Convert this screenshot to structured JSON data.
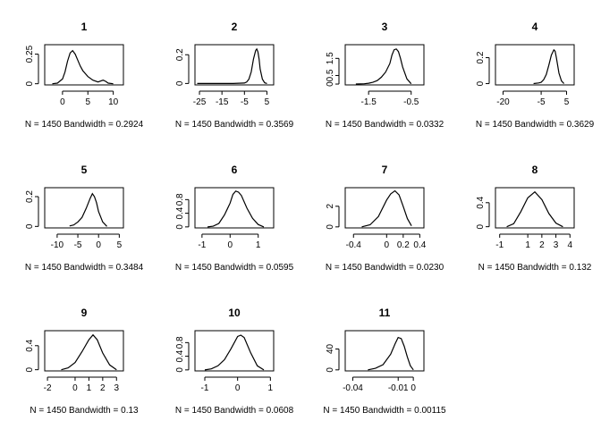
{
  "chart_data": [
    {
      "type": "line",
      "title": "1",
      "subtitle": "N = 1450   Bandwidth = 0.2924",
      "xticks": [
        0,
        5,
        10
      ],
      "xlim": [
        -3.5,
        12
      ],
      "yticks": [
        0,
        0.25
      ],
      "ylim": [
        -0.01,
        0.33
      ],
      "x": [
        -2,
        -1,
        0,
        0.5,
        1,
        1.5,
        2,
        2.5,
        3,
        3.5,
        4,
        5,
        6,
        7,
        8,
        8.5,
        9,
        10
      ],
      "y": [
        0,
        0.005,
        0.04,
        0.1,
        0.19,
        0.26,
        0.28,
        0.25,
        0.2,
        0.15,
        0.11,
        0.06,
        0.03,
        0.015,
        0.03,
        0.02,
        0.005,
        0
      ]
    },
    {
      "type": "line",
      "title": "2",
      "subtitle": "N = 1450   Bandwidth = 0.3569",
      "xticks": [
        -25,
        -15,
        -5,
        5
      ],
      "xlim": [
        -27,
        8
      ],
      "yticks": [
        0,
        0.2
      ],
      "ylim": [
        -0.01,
        0.27
      ],
      "x": [
        -26,
        -10,
        -5,
        -4,
        -3,
        -2,
        -1,
        0,
        0.5,
        1,
        1.5,
        2,
        3,
        4,
        5
      ],
      "y": [
        0,
        0,
        0.003,
        0.01,
        0.03,
        0.08,
        0.17,
        0.23,
        0.24,
        0.22,
        0.17,
        0.1,
        0.03,
        0.005,
        0
      ]
    },
    {
      "type": "line",
      "title": "3",
      "subtitle": "N = 1450   Bandwidth = 0.0332",
      "xticks": [
        -1.5,
        -0.5
      ],
      "xlim": [
        -2.05,
        -0.2
      ],
      "yticks": [
        0,
        0.5,
        1.5
      ],
      "ylim": [
        -0.05,
        2.3
      ],
      "x": [
        -1.8,
        -1.6,
        -1.5,
        -1.4,
        -1.3,
        -1.2,
        -1.1,
        -1.0,
        -0.95,
        -0.9,
        -0.85,
        -0.8,
        -0.75,
        -0.7,
        -0.6,
        -0.5
      ],
      "y": [
        0,
        0.02,
        0.05,
        0.1,
        0.2,
        0.4,
        0.7,
        1.2,
        1.7,
        2.0,
        2.05,
        1.9,
        1.5,
        1.0,
        0.3,
        0.02
      ]
    },
    {
      "type": "line",
      "title": "4",
      "subtitle": "N = 1450   Bandwidth = 0.3629",
      "xticks": [
        -20,
        -5,
        5
      ],
      "xlim": [
        -23,
        8
      ],
      "yticks": [
        0,
        0.2
      ],
      "ylim": [
        -0.01,
        0.3
      ],
      "x": [
        -8,
        -6,
        -5,
        -4,
        -3,
        -2,
        -1,
        0,
        0.5,
        1,
        2,
        3,
        4
      ],
      "y": [
        0,
        0.005,
        0.01,
        0.03,
        0.07,
        0.14,
        0.22,
        0.26,
        0.25,
        0.2,
        0.08,
        0.02,
        0
      ]
    },
    {
      "type": "line",
      "title": "5",
      "subtitle": "N = 1450   Bandwidth = 0.3484",
      "xticks": [
        -10,
        -5,
        0,
        5
      ],
      "xlim": [
        -13,
        6
      ],
      "yticks": [
        0,
        0.2
      ],
      "ylim": [
        -0.01,
        0.26
      ],
      "x": [
        -7,
        -6,
        -5,
        -4,
        -3,
        -2,
        -1.5,
        -1,
        -0.5,
        0,
        1,
        2
      ],
      "y": [
        0.003,
        0.01,
        0.03,
        0.06,
        0.12,
        0.19,
        0.22,
        0.2,
        0.16,
        0.1,
        0.03,
        0
      ]
    },
    {
      "type": "line",
      "title": "6",
      "subtitle": "N = 1450   Bandwidth = 0.0595",
      "xticks": [
        -1.0,
        0.0,
        1.0
      ],
      "xlim": [
        -1.25,
        1.55
      ],
      "yticks": [
        0,
        0.4,
        0.8
      ],
      "ylim": [
        -0.03,
        1.15
      ],
      "x": [
        -0.8,
        -0.6,
        -0.4,
        -0.2,
        0,
        0.1,
        0.2,
        0.3,
        0.4,
        0.6,
        0.8,
        1.0,
        1.2
      ],
      "y": [
        0,
        0.02,
        0.1,
        0.35,
        0.7,
        0.95,
        1.05,
        1.02,
        0.92,
        0.55,
        0.25,
        0.07,
        0
      ]
    },
    {
      "type": "line",
      "title": "7",
      "subtitle": "N = 1450   Bandwidth = 0.0230",
      "xticks": [
        -0.4,
        0.0,
        0.2,
        0.4
      ],
      "xlim": [
        -0.5,
        0.45
      ],
      "yticks": [
        0,
        2
      ],
      "ylim": [
        -0.1,
        3.8
      ],
      "x": [
        -0.3,
        -0.2,
        -0.1,
        0,
        0.05,
        0.1,
        0.15,
        0.2,
        0.25,
        0.3
      ],
      "y": [
        0,
        0.2,
        1.0,
        2.6,
        3.2,
        3.5,
        3.1,
        2.0,
        0.8,
        0.1
      ]
    },
    {
      "type": "line",
      "title": "8",
      "subtitle": "N = 1450   Bandwidth = 0.132",
      "xticks": [
        -1,
        1,
        2,
        3,
        4
      ],
      "xlim": [
        -1.3,
        4.3
      ],
      "yticks": [
        0,
        0.4
      ],
      "ylim": [
        -0.02,
        0.65
      ],
      "x": [
        -0.5,
        0,
        0.5,
        1,
        1.5,
        2,
        2.5,
        3,
        3.5
      ],
      "y": [
        0,
        0.05,
        0.25,
        0.48,
        0.58,
        0.45,
        0.22,
        0.06,
        0
      ]
    },
    {
      "type": "line",
      "title": "9",
      "subtitle": "N = 1450   Bandwidth = 0.13",
      "xticks": [
        -2,
        0,
        1,
        2,
        3
      ],
      "xlim": [
        -2.2,
        3.5
      ],
      "yticks": [
        0,
        0.4
      ],
      "ylim": [
        -0.02,
        0.65
      ],
      "x": [
        -1,
        -0.5,
        0,
        0.5,
        1,
        1.3,
        1.6,
        2,
        2.5,
        3
      ],
      "y": [
        0,
        0.03,
        0.12,
        0.3,
        0.5,
        0.58,
        0.5,
        0.28,
        0.08,
        0
      ]
    },
    {
      "type": "line",
      "title": "10",
      "subtitle": "N = 1450   Bandwidth = 0.0608",
      "xticks": [
        -1.0,
        0.0,
        1.0
      ],
      "xlim": [
        -1.3,
        1.1
      ],
      "yticks": [
        0,
        0.4,
        0.8
      ],
      "ylim": [
        -0.03,
        1.15
      ],
      "x": [
        -1.0,
        -0.8,
        -0.6,
        -0.4,
        -0.2,
        0,
        0.1,
        0.2,
        0.4,
        0.6,
        0.8
      ],
      "y": [
        0,
        0.03,
        0.12,
        0.3,
        0.62,
        0.98,
        1.02,
        0.95,
        0.5,
        0.12,
        0
      ]
    },
    {
      "type": "line",
      "title": "11",
      "subtitle": "N = 1450   Bandwidth = 0.00115",
      "xticks": [
        -0.04,
        -0.01,
        0.0
      ],
      "xlim": [
        -0.045,
        0.007
      ],
      "yticks": [
        0,
        40
      ],
      "ylim": [
        -2,
        75
      ],
      "x": [
        -0.03,
        -0.025,
        -0.02,
        -0.015,
        -0.012,
        -0.01,
        -0.008,
        -0.006,
        -0.004,
        -0.002,
        0
      ],
      "y": [
        0,
        3,
        10,
        30,
        50,
        62,
        60,
        45,
        25,
        8,
        0
      ]
    }
  ]
}
